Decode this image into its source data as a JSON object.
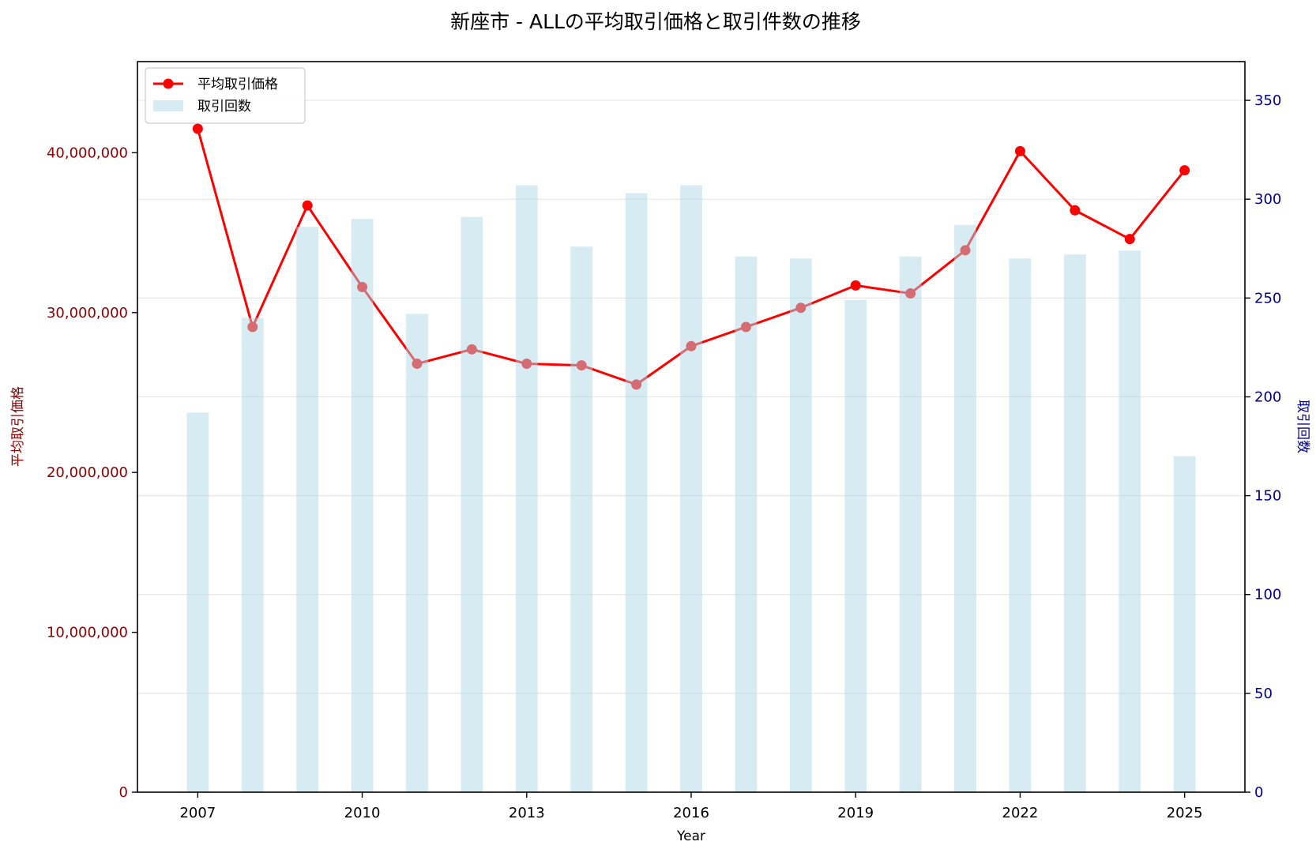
{
  "chart_data": {
    "type": "bar+line",
    "title": "新座市 - ALLの平均取引価格と取引件数の推移",
    "xlabel": "Year",
    "ylabel_left": "平均取引価格",
    "ylabel_right": "取引回数",
    "x": [
      2007,
      2008,
      2009,
      2010,
      2011,
      2012,
      2013,
      2014,
      2015,
      2016,
      2017,
      2018,
      2019,
      2020,
      2021,
      2022,
      2023,
      2024,
      2025
    ],
    "x_ticks": [
      "2007",
      "2010",
      "2013",
      "2016",
      "2019",
      "2022",
      "2025"
    ],
    "xlim": [
      2005.9,
      2026.1
    ],
    "y_left_ticks": [
      "0",
      "10,000,000",
      "20,000,000",
      "30,000,000",
      "40,000,000"
    ],
    "y_left_tick_values": [
      0,
      10000000,
      20000000,
      30000000,
      40000000
    ],
    "ylim_left": [
      0,
      45700000
    ],
    "y_right_ticks": [
      "0",
      "50",
      "100",
      "150",
      "200",
      "250",
      "300",
      "350"
    ],
    "y_right_tick_values": [
      0,
      50,
      100,
      150,
      200,
      250,
      300,
      350
    ],
    "ylim_right": [
      0,
      369.6
    ],
    "grid": "horizontal, right axis",
    "legend_position": "top-left",
    "series": [
      {
        "name": "平均取引価格",
        "kind": "line",
        "axis": "left",
        "color": "#ff0000",
        "values": [
          41500000,
          29100000,
          36700000,
          31600000,
          26800000,
          27700000,
          26800000,
          26700000,
          25500000,
          27900000,
          29100000,
          30300000,
          31700000,
          31200000,
          33900000,
          40100000,
          36400000,
          34600000,
          38900000
        ]
      },
      {
        "name": "取引回数",
        "kind": "bar",
        "axis": "right",
        "color": "#add8e6",
        "values": [
          192,
          240,
          286,
          290,
          242,
          291,
          307,
          276,
          303,
          307,
          271,
          270,
          249,
          271,
          287,
          270,
          272,
          274,
          170
        ]
      }
    ],
    "colors": {
      "left_axis_text": "#8b0000",
      "right_axis_text": "#00008b",
      "bar": "#add8e6",
      "line": "#ff0000",
      "grid": "#e6e6e6"
    }
  }
}
